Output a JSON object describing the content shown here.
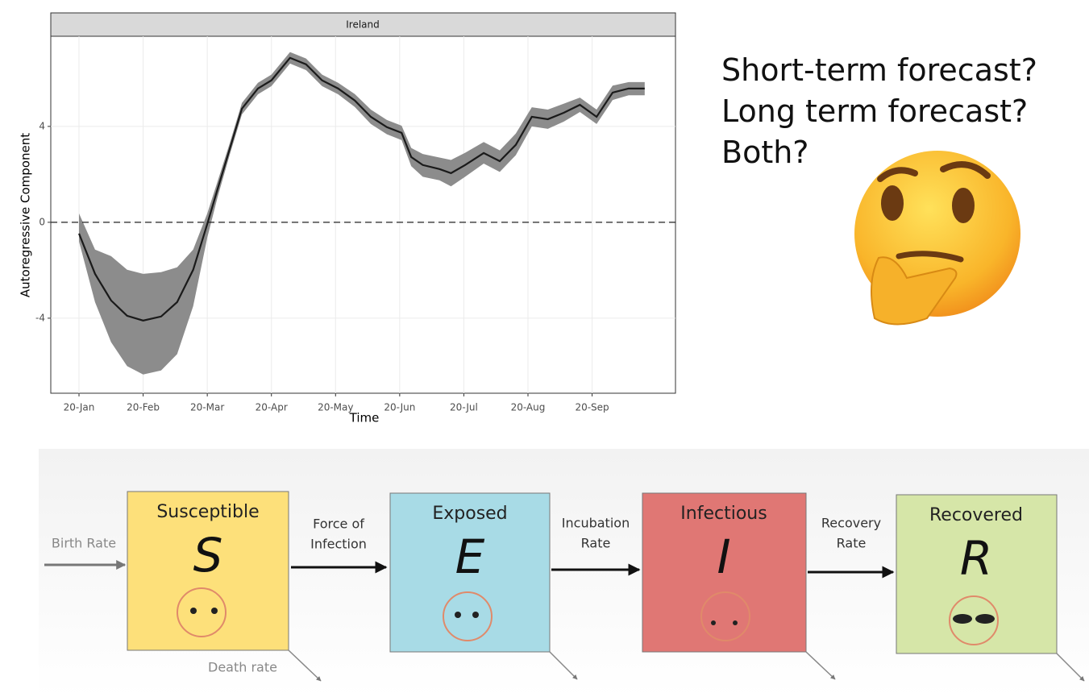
{
  "chart_data": {
    "type": "line",
    "strip": "Ireland",
    "x_label": "Time",
    "y_label": "Autoregressive Component",
    "x": [
      0,
      0.25,
      0.5,
      0.75,
      1,
      1.28,
      1.53,
      1.78,
      2,
      2.16,
      2.35,
      2.54,
      2.79,
      3,
      3.29,
      3.54,
      3.79,
      4.04,
      4.3,
      4.55,
      4.8,
      5.03,
      5.18,
      5.36,
      5.62,
      5.8,
      6.02,
      6.31,
      6.56,
      6.81,
      7.06,
      7.31,
      7.56,
      7.81,
      8.07,
      8.32,
      8.57,
      8.82
    ],
    "values": [
      -0.47,
      -2.15,
      -3.26,
      -3.9,
      -4.1,
      -3.93,
      -3.33,
      -1.98,
      -0.07,
      1.38,
      3.06,
      4.74,
      5.58,
      5.92,
      6.86,
      6.59,
      5.92,
      5.58,
      5.08,
      4.4,
      3.97,
      3.73,
      2.72,
      2.39,
      2.22,
      2.05,
      2.39,
      2.89,
      2.55,
      3.23,
      4.4,
      4.3,
      4.57,
      4.9,
      4.4,
      5.41,
      5.58,
      5.58
    ],
    "upper": [
      0.37,
      -1.14,
      -1.41,
      -1.98,
      -2.15,
      -2.08,
      -1.88,
      -1.14,
      0.37,
      1.7,
      3.3,
      4.98,
      5.82,
      6.16,
      7.1,
      6.83,
      6.16,
      5.82,
      5.35,
      4.7,
      4.27,
      4.03,
      3.1,
      2.85,
      2.7,
      2.6,
      2.9,
      3.35,
      3.0,
      3.7,
      4.8,
      4.7,
      4.95,
      5.2,
      4.7,
      5.7,
      5.85,
      5.85
    ],
    "lower": [
      -0.8,
      -3.33,
      -5.0,
      -6.0,
      -6.35,
      -6.18,
      -5.5,
      -3.5,
      -0.64,
      1.04,
      2.82,
      4.5,
      5.34,
      5.68,
      6.62,
      6.35,
      5.68,
      5.34,
      4.81,
      4.1,
      3.67,
      3.43,
      2.34,
      1.9,
      1.75,
      1.5,
      1.9,
      2.45,
      2.1,
      2.8,
      4.0,
      3.9,
      4.2,
      4.6,
      4.1,
      5.1,
      5.3,
      5.3
    ],
    "color": "#1a1a1a",
    "band_color": "#8c8c8c",
    "hline": 0,
    "xlim": [
      -0.44,
      9.3
    ],
    "ylim": [
      -7.13,
      7.76
    ],
    "xticks": [
      {
        "value": 0,
        "label": "20-Jan"
      },
      {
        "value": 1,
        "label": "20-Feb"
      },
      {
        "value": 2,
        "label": "20-Mar"
      },
      {
        "value": 3,
        "label": "20-Apr"
      },
      {
        "value": 4,
        "label": "20-May"
      },
      {
        "value": 5,
        "label": "20-Jun"
      },
      {
        "value": 6,
        "label": "20-Jul"
      },
      {
        "value": 7,
        "label": "20-Aug"
      },
      {
        "value": 8,
        "label": "20-Sep"
      }
    ],
    "yticks": [
      -4,
      0,
      4
    ],
    "grid": true
  },
  "question": {
    "lines": [
      "Short-term forecast?",
      "Long term forecast?",
      "Both?"
    ]
  },
  "diagram": {
    "boxes": [
      {
        "title": "Susceptible",
        "letter": "S"
      },
      {
        "title": "Exposed",
        "letter": "E"
      },
      {
        "title": "Infectious",
        "letter": "I"
      },
      {
        "title": "Recovered",
        "letter": "R"
      }
    ],
    "birth": "Birth Rate",
    "death": "Death rate",
    "arrows": [
      [
        "Force of",
        "Infection"
      ],
      [
        "Incubation",
        "Rate"
      ],
      [
        "Recovery",
        "Rate"
      ]
    ]
  }
}
